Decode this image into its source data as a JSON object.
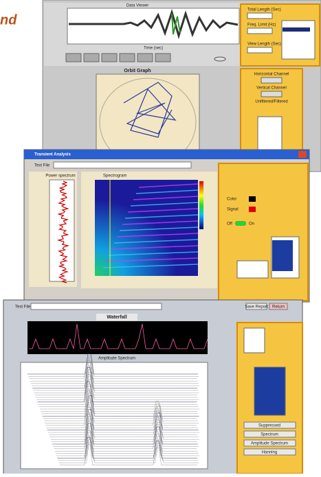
{
  "header": {
    "fragment": "nd"
  },
  "viewer": {
    "graph_title": "Data Viewer",
    "x_label": "Time (sec)",
    "total_length": "Total Length (Sec)",
    "freq_limit": "Freq. Limit (Hz)",
    "view_length": "View Length (Sec)",
    "orbit_title": "Orbit Graph",
    "horizontal": "Horizontal Channel",
    "vertical": "Vertical Channel",
    "filtered": "Unfiltered/Filtered"
  },
  "transient": {
    "title": "Transient Analysis",
    "text_file": "Text File",
    "power": "Power spectrum",
    "spectrogram": "Spectrogram",
    "color": "Color",
    "signal": "Signal",
    "off": "Off",
    "on": "On"
  },
  "waterfall": {
    "text_file": "Text File",
    "save": "Save Report",
    "return": "Return",
    "title": "Waterfall",
    "amp": "Amplitude Spectrum",
    "spectrum": "Spectrum",
    "window": "Hanning",
    "suppressed": "Suppressed"
  }
}
